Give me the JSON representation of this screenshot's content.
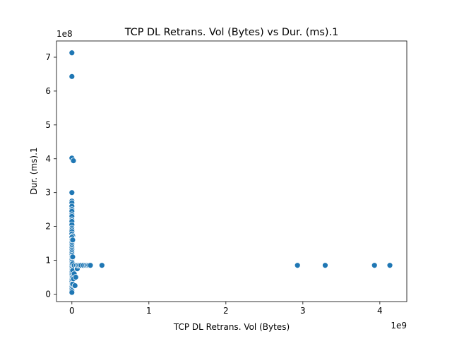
{
  "chart_data": {
    "type": "scatter",
    "title": "TCP DL Retrans. Vol (Bytes) vs Dur. (ms).1",
    "xlabel": "TCP DL Retrans. Vol (Bytes)",
    "ylabel": "Dur. (ms).1",
    "x_offset_label": "1e9",
    "y_offset_label": "1e8",
    "xlim": [
      -0.2,
      4.35
    ],
    "ylim": [
      -0.22,
      7.48
    ],
    "x_ticks": [
      0,
      1,
      2,
      3,
      4
    ],
    "x_tick_labels": [
      "0",
      "1",
      "2",
      "3",
      "4"
    ],
    "y_ticks": [
      0,
      1,
      2,
      3,
      4,
      5,
      6,
      7
    ],
    "y_tick_labels": [
      "0",
      "1",
      "2",
      "3",
      "4",
      "5",
      "6",
      "7"
    ],
    "grid": false,
    "legend": "none",
    "marker_color": "#1f77b4",
    "x_unit_note": "x values in units of 1e9 bytes",
    "y_unit_note": "y values in units of 1e8 ms",
    "points": [
      [
        0.0,
        7.13
      ],
      [
        0.0,
        6.43
      ],
      [
        0.0,
        4.02
      ],
      [
        0.02,
        3.94
      ],
      [
        0.0,
        3.0
      ],
      [
        0.0,
        2.75
      ],
      [
        0.0,
        2.7
      ],
      [
        0.0,
        2.6
      ],
      [
        0.0,
        2.5
      ],
      [
        0.0,
        2.45
      ],
      [
        0.0,
        2.35
      ],
      [
        0.0,
        2.3
      ],
      [
        0.0,
        2.2
      ],
      [
        0.0,
        2.15
      ],
      [
        0.0,
        2.05
      ],
      [
        0.0,
        1.95
      ],
      [
        0.0,
        1.9
      ],
      [
        0.0,
        1.85
      ],
      [
        0.0,
        1.78
      ],
      [
        0.01,
        1.72
      ],
      [
        0.0,
        1.68
      ],
      [
        0.0,
        1.6
      ],
      [
        0.0,
        1.55
      ],
      [
        0.0,
        1.5
      ],
      [
        0.0,
        1.45
      ],
      [
        0.0,
        1.4
      ],
      [
        0.0,
        1.35
      ],
      [
        0.0,
        1.3
      ],
      [
        0.0,
        1.25
      ],
      [
        0.0,
        1.2
      ],
      [
        0.0,
        1.15
      ],
      [
        0.0,
        1.1
      ],
      [
        0.0,
        1.05
      ],
      [
        0.0,
        1.0
      ],
      [
        0.0,
        0.95
      ],
      [
        0.0,
        0.9
      ],
      [
        0.0,
        0.85
      ],
      [
        0.0,
        0.8
      ],
      [
        0.0,
        0.75
      ],
      [
        0.0,
        0.7
      ],
      [
        0.0,
        0.65
      ],
      [
        0.0,
        0.6
      ],
      [
        0.0,
        0.55
      ],
      [
        0.0,
        0.5
      ],
      [
        0.0,
        0.45
      ],
      [
        0.0,
        0.4
      ],
      [
        0.0,
        0.35
      ],
      [
        0.0,
        0.3
      ],
      [
        0.0,
        0.25
      ],
      [
        0.0,
        0.2
      ],
      [
        0.0,
        0.15
      ],
      [
        0.0,
        0.1
      ],
      [
        0.0,
        0.05
      ],
      [
        0.01,
        1.6
      ],
      [
        0.01,
        1.1
      ],
      [
        0.01,
        0.9
      ],
      [
        0.01,
        0.7
      ],
      [
        0.01,
        0.5
      ],
      [
        0.01,
        0.3
      ],
      [
        0.02,
        0.45
      ],
      [
        0.03,
        0.6
      ],
      [
        0.03,
        0.85
      ],
      [
        0.04,
        0.25
      ],
      [
        0.05,
        0.5
      ],
      [
        0.06,
        0.85
      ],
      [
        0.07,
        0.75
      ],
      [
        0.08,
        0.85
      ],
      [
        0.1,
        0.85
      ],
      [
        0.12,
        0.85
      ],
      [
        0.15,
        0.85
      ],
      [
        0.18,
        0.85
      ],
      [
        0.2,
        0.85
      ],
      [
        0.22,
        0.85
      ],
      [
        0.24,
        0.85
      ],
      [
        0.39,
        0.85
      ],
      [
        2.93,
        0.85
      ],
      [
        3.29,
        0.85
      ],
      [
        3.93,
        0.85
      ],
      [
        4.13,
        0.85
      ]
    ]
  }
}
